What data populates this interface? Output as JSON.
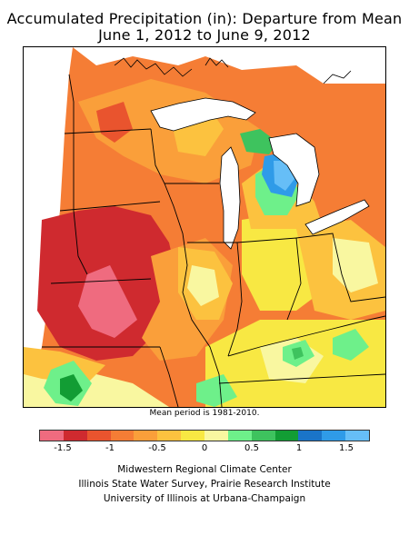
{
  "header": {
    "title_line1": "Accumulated Precipitation (in): Departure from Mean",
    "title_line2": "June 1, 2012 to June 9, 2012"
  },
  "map": {
    "note": "Mean period is 1981-2010.",
    "colors": {
      "lt_-1.5": "#ef6b7f",
      "-1.5_-1.25": "#cf2a2f",
      "-1.25_-1": "#e9542e",
      "-1_-0.75": "#f57d35",
      "-0.75_-0.5": "#fa9f3a",
      "-0.5_-0.25": "#fcc23f",
      "-0.25_0": "#f8e843",
      "0_0.25": "#f9f7a0",
      "0.25_0.5": "#6ef08a",
      "0.5_0.75": "#3ec35e",
      "0.75_1": "#129d34",
      "1_1.25": "#1a74c8",
      "1.25_1.5": "#2f9be8",
      "gt_1.5": "#66bef7"
    }
  },
  "legend": {
    "colors": [
      "#ef6b7f",
      "#cf2a2f",
      "#e9542e",
      "#f57d35",
      "#fa9f3a",
      "#fcc23f",
      "#f8e843",
      "#f9f7a0",
      "#6ef08a",
      "#3ec35e",
      "#129d34",
      "#1a74c8",
      "#2f9be8",
      "#66bef7"
    ],
    "tick_labels": [
      "-1.5",
      "-1",
      "-0.5",
      "0",
      "0.5",
      "1",
      "1.5"
    ],
    "tick_values": [
      -1.5,
      -1,
      -0.5,
      0,
      0.5,
      1,
      1.5
    ]
  },
  "credits": {
    "line1": "Midwestern Regional Climate Center",
    "line2": "Illinois State Water Survey, Prairie Research Institute",
    "line3": "University of Illinois at Urbana-Champaign"
  }
}
